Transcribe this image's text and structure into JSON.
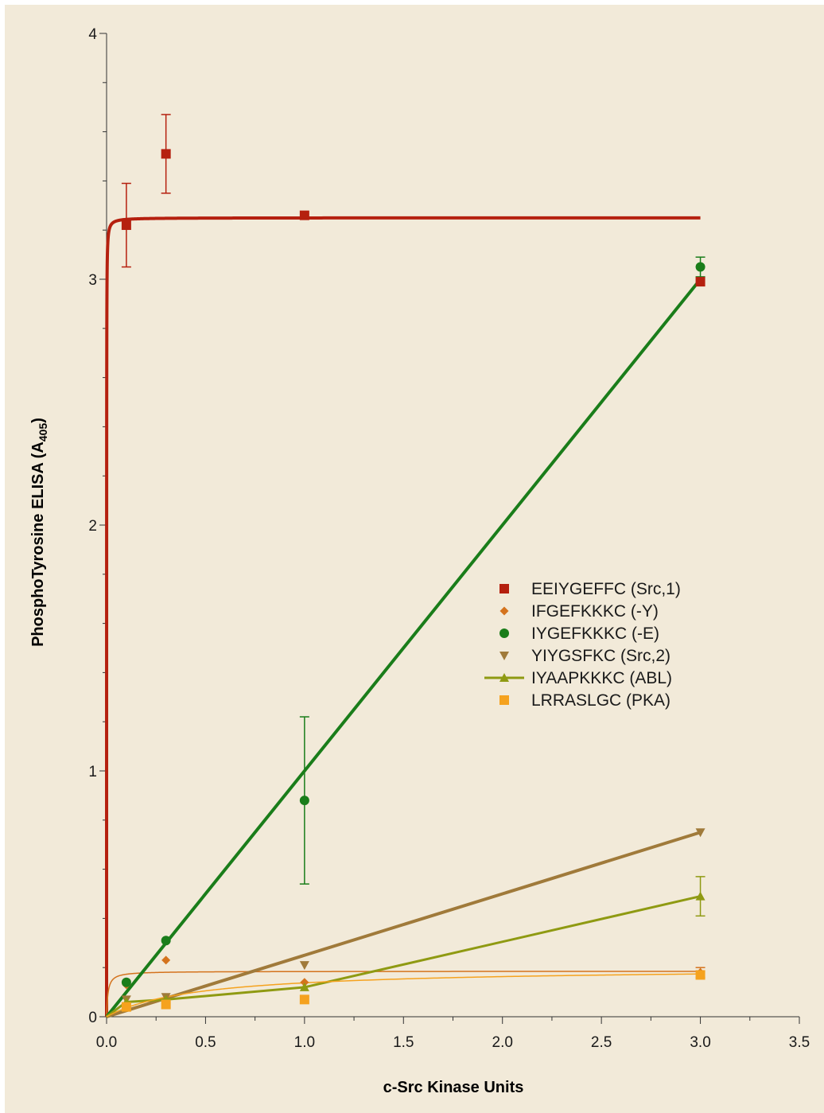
{
  "chart_data": {
    "type": "scatter",
    "xlabel": "c-Src Kinase Units",
    "ylabel_main": "PhosphoTyrosine ELISA (A",
    "ylabel_sub": "405",
    "ylabel_end": ")",
    "xlim": [
      0,
      3.5
    ],
    "ylim": [
      0,
      4
    ],
    "x_ticks": [
      0.0,
      0.5,
      1.0,
      1.5,
      2.0,
      2.5,
      3.0,
      3.5
    ],
    "x_tick_labels": [
      "0.0",
      "0.5",
      "1.0",
      "1.5",
      "2.0",
      "2.5",
      "3.0",
      "3.5"
    ],
    "y_ticks": [
      0,
      1,
      2,
      3,
      4
    ],
    "y_tick_labels": [
      "0",
      "1",
      "2",
      "3",
      "4"
    ],
    "legend_position": "right",
    "background_color": "#f2ead9",
    "series": [
      {
        "name": "EEIYGEFFC (Src,1)",
        "marker": "square",
        "color": "#b5200f",
        "points": [
          [
            0.1,
            3.22
          ],
          [
            0.3,
            3.51
          ],
          [
            1.0,
            3.26
          ],
          [
            3.0,
            2.99
          ]
        ],
        "errors": [
          0.17,
          0.16,
          0,
          0
        ],
        "fit": {
          "kind": "hyperbola",
          "vmax": 3.25,
          "km": 0.0002
        },
        "fit_width": 4
      },
      {
        "name": "IFGEFKKKC (-Y)",
        "marker": "diamond",
        "color": "#d4731d",
        "points": [
          [
            0.1,
            0.13
          ],
          [
            0.3,
            0.23
          ],
          [
            1.0,
            0.14
          ],
          [
            3.0,
            0.18
          ]
        ],
        "errors": [
          0,
          0,
          0,
          0.02
        ],
        "fit": {
          "kind": "hyperbola",
          "vmax": 0.185,
          "km": 0.007
        },
        "fit_width": 1.5
      },
      {
        "name": "IYGEFKKKC (-E)",
        "marker": "circle",
        "color": "#1a7d1a",
        "points": [
          [
            0.1,
            0.14
          ],
          [
            0.3,
            0.31
          ],
          [
            1.0,
            0.88
          ],
          [
            3.0,
            3.05
          ]
        ],
        "errors": [
          0,
          0,
          0.34,
          0.04
        ],
        "fit": {
          "kind": "linear",
          "slope": 1.0,
          "intercept": 0
        },
        "fit_width": 4
      },
      {
        "name": "YIYGSFKC (Src,2)",
        "marker": "triangle-down",
        "color": "#a07a3a",
        "points": [
          [
            0.1,
            0.07
          ],
          [
            0.3,
            0.08
          ],
          [
            1.0,
            0.21
          ],
          [
            3.0,
            0.75
          ]
        ],
        "errors": [
          0,
          0,
          0,
          0
        ],
        "fit": {
          "kind": "linear",
          "slope": 0.25,
          "intercept": 0
        },
        "fit_width": 4
      },
      {
        "name": "IYAAPKKKC (ABL)",
        "marker": "triangle-up",
        "color": "#8f9a12",
        "points": [
          [
            0.1,
            0.06
          ],
          [
            0.3,
            0.07
          ],
          [
            1.0,
            0.12
          ],
          [
            3.0,
            0.49
          ]
        ],
        "errors": [
          0,
          0,
          0,
          0.08
        ],
        "fit": {
          "kind": "polyline",
          "points": [
            [
              0.0,
              0.0
            ],
            [
              0.1,
              0.06
            ],
            [
              0.3,
              0.07
            ],
            [
              1.0,
              0.12
            ],
            [
              3.0,
              0.49
            ]
          ]
        },
        "fit_width": 3
      },
      {
        "name": "LRRASLGC (PKA)",
        "marker": "square",
        "color": "#f5a21e",
        "points": [
          [
            0.1,
            0.04
          ],
          [
            0.3,
            0.05
          ],
          [
            1.0,
            0.07
          ],
          [
            3.0,
            0.17
          ]
        ],
        "errors": [
          0,
          0,
          0,
          0
        ],
        "fit": {
          "kind": "hyperbola",
          "vmax": 0.2,
          "km": 0.45
        },
        "fit_width": 1.5
      }
    ]
  }
}
